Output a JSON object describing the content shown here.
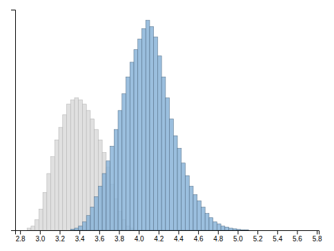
{
  "chart_data": {
    "type": "histogram",
    "xlim": [
      2.75,
      5.82
    ],
    "ylim": [
      0,
      1.05
    ],
    "xticks": [
      2.8,
      {
        "value": 3.0,
        "label": "3.0"
      },
      3.2,
      3.4,
      3.6,
      3.8,
      {
        "value": 4.0,
        "label": "4.0"
      },
      4.2,
      4.4,
      4.6,
      4.8,
      {
        "value": 5.0,
        "label": "5.0"
      },
      5.2,
      5.4,
      5.6,
      5.8
    ],
    "tick_labels": "x",
    "series": [
      {
        "color": "#e0e0e0",
        "bins": [
          2.75,
          2.79,
          2.83,
          2.87,
          2.91,
          2.95,
          2.99,
          3.03,
          3.07,
          3.11,
          3.15,
          3.19,
          3.23,
          3.27,
          3.31,
          3.35,
          3.39,
          3.43,
          3.47,
          3.51,
          3.55,
          3.59,
          3.63,
          3.67,
          3.71,
          3.75,
          3.79,
          3.83,
          3.87,
          3.91,
          3.95,
          3.99,
          4.03,
          4.07,
          4.11,
          4.15,
          4.19,
          4.23,
          4.27,
          4.31,
          4.35,
          4.39,
          4.43,
          4.47,
          4.51,
          4.55,
          4.59,
          4.63,
          4.67,
          4.71,
          4.75,
          4.79
        ],
        "values": [
          0.0,
          0.0,
          0.0,
          0.01,
          0.02,
          0.05,
          0.1,
          0.18,
          0.27,
          0.35,
          0.43,
          0.49,
          0.55,
          0.6,
          0.62,
          0.63,
          0.62,
          0.6,
          0.57,
          0.53,
          0.48,
          0.43,
          0.37,
          0.3,
          0.22,
          0.15,
          0.09,
          0.05,
          0.02,
          0.01,
          0.0,
          0.0,
          0.0,
          0.0,
          0.0,
          0.0,
          0.0,
          0.0,
          0.0,
          0.0,
          0.0,
          0.0,
          0.0,
          0.0,
          0.0,
          0.0,
          0.0,
          0.0,
          0.0,
          0.0,
          0.0
        ]
      },
      {
        "color": "#8ab4d8",
        "bins": [
          2.75,
          2.79,
          2.83,
          2.87,
          2.91,
          2.95,
          2.99,
          3.03,
          3.07,
          3.11,
          3.15,
          3.19,
          3.23,
          3.27,
          3.31,
          3.35,
          3.39,
          3.43,
          3.47,
          3.51,
          3.55,
          3.59,
          3.63,
          3.67,
          3.71,
          3.75,
          3.79,
          3.83,
          3.87,
          3.91,
          3.95,
          3.99,
          4.03,
          4.07,
          4.11,
          4.15,
          4.19,
          4.23,
          4.27,
          4.31,
          4.35,
          4.39,
          4.43,
          4.47,
          4.51,
          4.55,
          4.59,
          4.63,
          4.67,
          4.71,
          4.75,
          4.79,
          4.83,
          4.87,
          4.91,
          4.95,
          4.99,
          5.03,
          5.07,
          5.11,
          5.15,
          5.19,
          5.23,
          5.27,
          5.31,
          5.35,
          5.39,
          5.43,
          5.47,
          5.51,
          5.55,
          5.59,
          5.63
        ],
        "values": [
          0.0,
          0.0,
          0.0,
          0.0,
          0.0,
          0.0,
          0.0,
          0.0,
          0.0,
          0.0,
          0.0,
          0.0,
          0.0,
          0.0,
          0.005,
          0.01,
          0.02,
          0.04,
          0.07,
          0.11,
          0.16,
          0.21,
          0.27,
          0.33,
          0.4,
          0.48,
          0.57,
          0.65,
          0.73,
          0.8,
          0.86,
          0.91,
          0.96,
          1.0,
          0.97,
          0.92,
          0.83,
          0.73,
          0.63,
          0.53,
          0.45,
          0.39,
          0.32,
          0.26,
          0.21,
          0.17,
          0.14,
          0.11,
          0.08,
          0.06,
          0.04,
          0.03,
          0.02,
          0.015,
          0.01,
          0.007,
          0.004,
          0.002,
          0.001,
          0.0,
          0.0,
          0.0,
          0.0,
          0.0,
          0.0,
          0.0,
          0.0,
          0.0,
          0.0,
          0.0,
          0.0,
          0.0
        ]
      }
    ]
  }
}
